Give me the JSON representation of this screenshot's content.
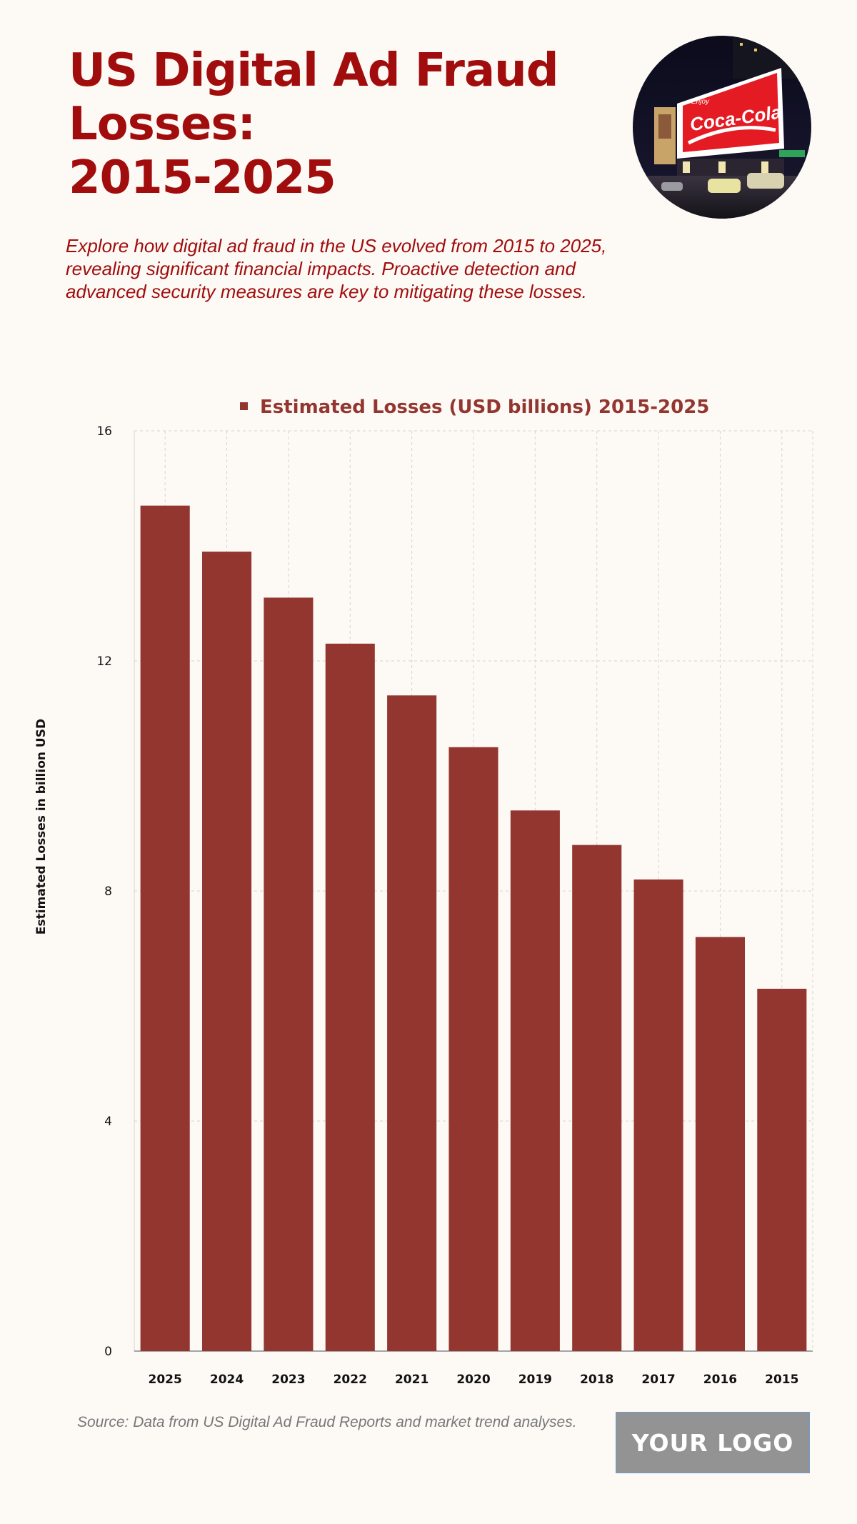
{
  "title": {
    "line1": "US Digital Ad Fraud",
    "line2": "Losses:",
    "line3": "2015-2025"
  },
  "photo": {
    "billboard_tagline": "Enjoy",
    "billboard_brand": "Coca-Cola"
  },
  "subtitle": "Explore how digital ad fraud in the US evolved from 2015 to 2025, revealing significant financial impacts. Proactive detection and advanced security measures are key to mitigating these losses.",
  "source": "Source: Data from US Digital Ad Fraud Reports and market trend analyses.",
  "logo_text": "YOUR LOGO",
  "colors": {
    "accent": "#a10d0d",
    "bar": "#943630",
    "background": "#fdfaf6"
  },
  "chart_data": {
    "type": "bar",
    "legend": "Estimated Losses (USD billions) 2015-2025",
    "legend_position": "top-center",
    "ylabel": "Estimated Losses in billion USD",
    "xlabel": "",
    "categories": [
      "2025",
      "2024",
      "2023",
      "2022",
      "2021",
      "2020",
      "2019",
      "2018",
      "2017",
      "2016",
      "2015"
    ],
    "values": [
      14.7,
      13.9,
      13.1,
      12.3,
      11.4,
      10.5,
      9.4,
      8.8,
      8.2,
      7.2,
      6.3
    ],
    "ylim": [
      0,
      16
    ],
    "yticks": [
      0,
      4,
      8,
      12,
      16
    ],
    "grid": true
  }
}
